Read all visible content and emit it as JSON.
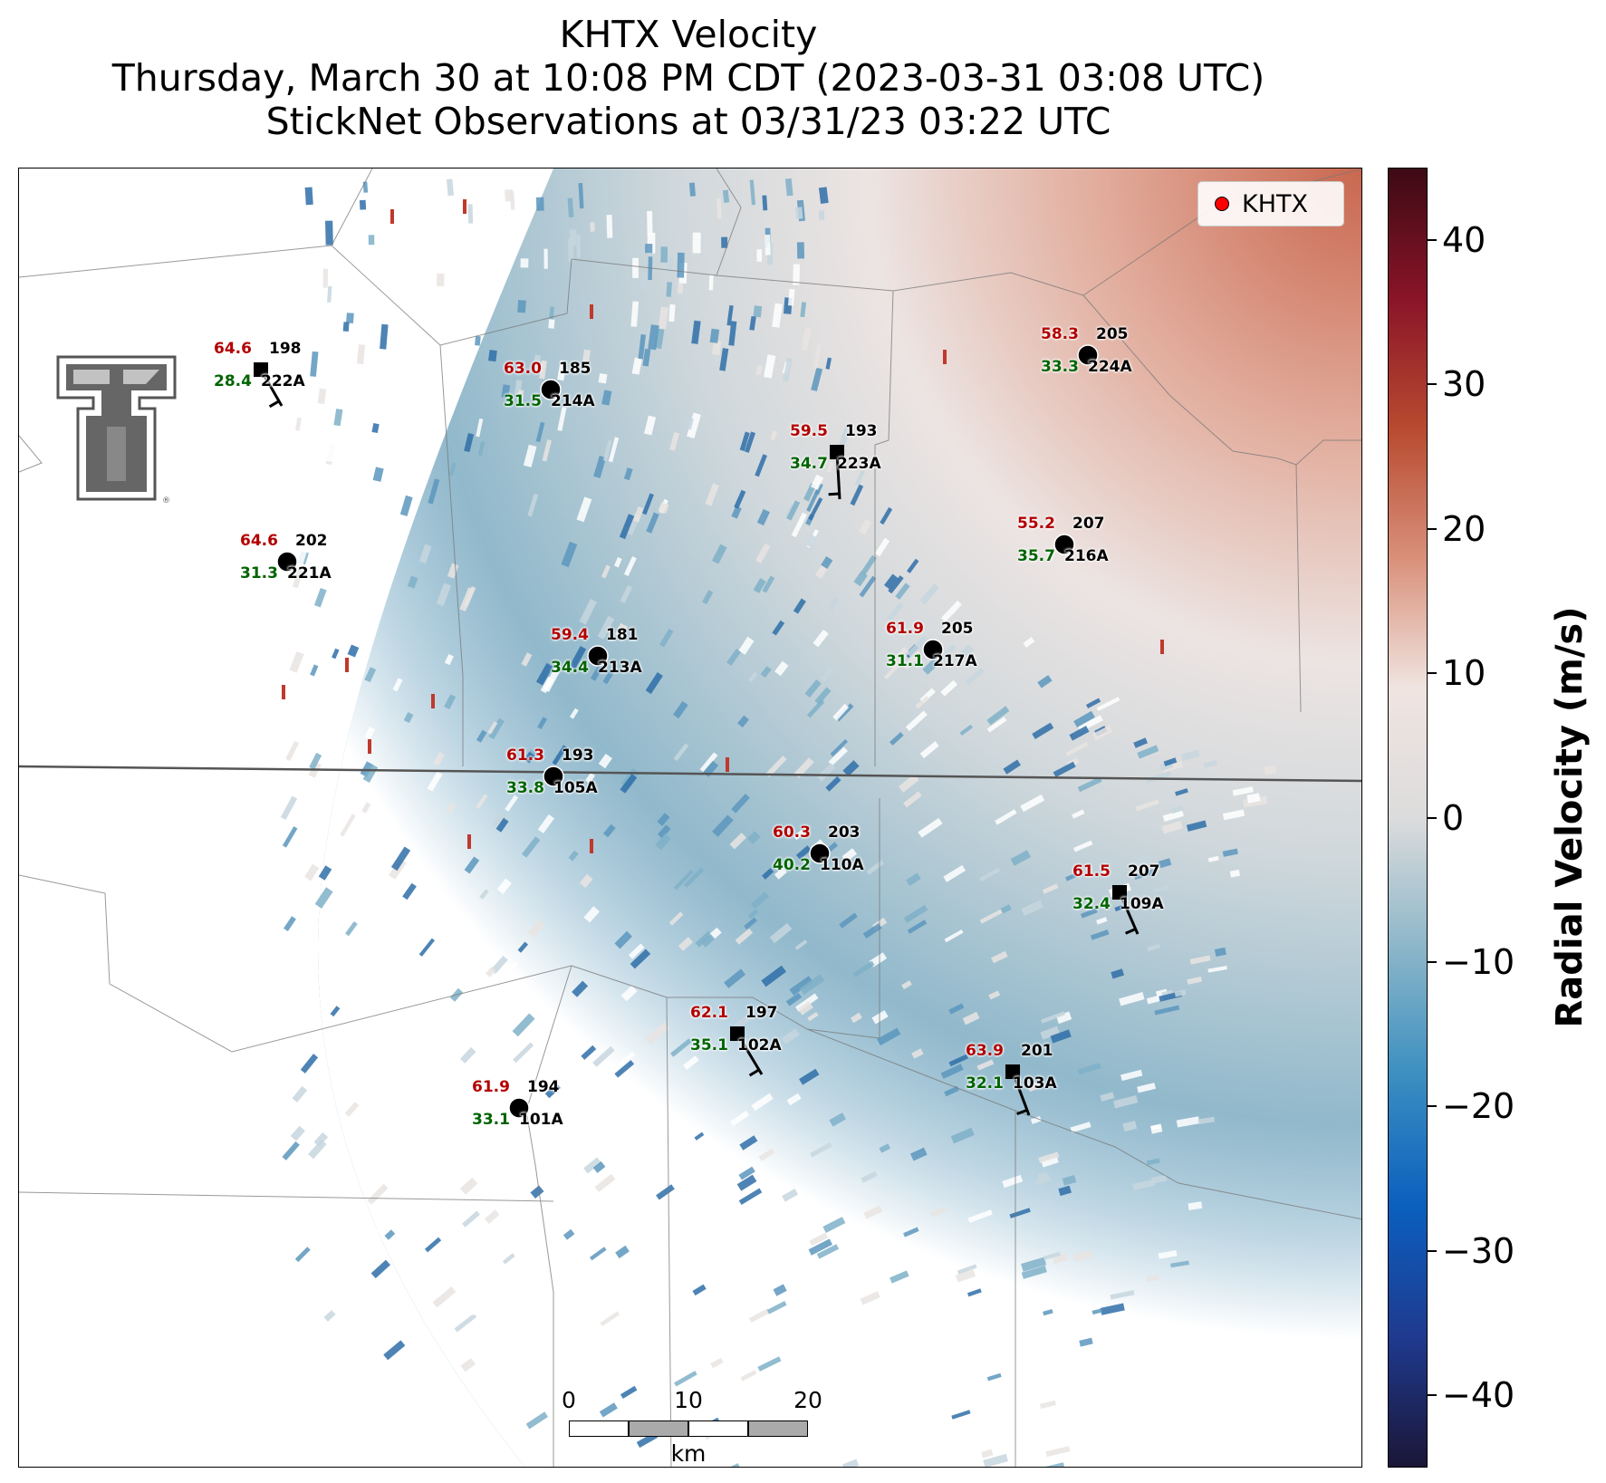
{
  "title": {
    "line1": "KHTX Velocity",
    "line2": "Thursday, March 30 at 10:08 PM CDT (2023-03-31 03:08 UTC)",
    "line3": "StickNet Observations at 03/31/23 03:22 UTC"
  },
  "legend": {
    "label": "KHTX",
    "marker_color": "#ff0000"
  },
  "colorbar": {
    "label": "Radial Velocity (m/s)",
    "range": [
      -45,
      45
    ],
    "ticks": [
      {
        "value": 40,
        "label": "40"
      },
      {
        "value": 30,
        "label": "30"
      },
      {
        "value": 20,
        "label": "20"
      },
      {
        "value": 10,
        "label": "10"
      },
      {
        "value": 0,
        "label": "0"
      },
      {
        "value": -10,
        "label": "−10"
      },
      {
        "value": -20,
        "label": "−20"
      },
      {
        "value": -30,
        "label": "−30"
      },
      {
        "value": -40,
        "label": "−40"
      }
    ],
    "colors": [
      "#1b1637",
      "#1f3a8f",
      "#0b5fbe",
      "#3a8ec0",
      "#8cb6c9",
      "#dcdcdc",
      "#f0e4e0",
      "#d9907a",
      "#b84a30",
      "#8a1428",
      "#3d0a14"
    ]
  },
  "scalebar": {
    "labels": [
      "0",
      "10",
      "20"
    ],
    "unit": "km",
    "segment_colors": [
      "#ffffff",
      "#aaaaaa",
      "#ffffff",
      "#aaaaaa"
    ]
  },
  "stations": [
    {
      "id": "222A",
      "temp": "64.6",
      "dewpoint": "28.4",
      "wind_dir": "198",
      "marker": "square",
      "barb": true
    },
    {
      "id": "214A",
      "temp": "63.0",
      "dewpoint": "31.5",
      "wind_dir": "185",
      "marker": "circle",
      "barb": false
    },
    {
      "id": "224A",
      "temp": "58.3",
      "dewpoint": "33.3",
      "wind_dir": "205",
      "marker": "circle",
      "barb": false
    },
    {
      "id": "223A",
      "temp": "59.5",
      "dewpoint": "34.7",
      "wind_dir": "193",
      "marker": "square",
      "barb": true
    },
    {
      "id": "221A",
      "temp": "64.6",
      "dewpoint": "31.3",
      "wind_dir": "202",
      "marker": "circle",
      "barb": false
    },
    {
      "id": "216A",
      "temp": "55.2",
      "dewpoint": "35.7",
      "wind_dir": "207",
      "marker": "circle",
      "barb": false
    },
    {
      "id": "213A",
      "temp": "59.4",
      "dewpoint": "34.4",
      "wind_dir": "181",
      "marker": "circle",
      "barb": false
    },
    {
      "id": "217A",
      "temp": "61.9",
      "dewpoint": "31.1",
      "wind_dir": "205",
      "marker": "circle",
      "barb": false
    },
    {
      "id": "105A",
      "temp": "61.3",
      "dewpoint": "33.8",
      "wind_dir": "193",
      "marker": "circle",
      "barb": false
    },
    {
      "id": "110A",
      "temp": "60.3",
      "dewpoint": "40.2",
      "wind_dir": "203",
      "marker": "circle",
      "barb": false
    },
    {
      "id": "109A",
      "temp": "61.5",
      "dewpoint": "32.4",
      "wind_dir": "207",
      "marker": "square",
      "barb": true
    },
    {
      "id": "102A",
      "temp": "62.1",
      "dewpoint": "35.1",
      "wind_dir": "197",
      "marker": "square",
      "barb": true
    },
    {
      "id": "103A",
      "temp": "63.9",
      "dewpoint": "32.1",
      "wind_dir": "201",
      "marker": "square",
      "barb": true
    },
    {
      "id": "101A",
      "temp": "61.9",
      "dewpoint": "33.1",
      "wind_dir": "194",
      "marker": "circle",
      "barb": false
    }
  ]
}
